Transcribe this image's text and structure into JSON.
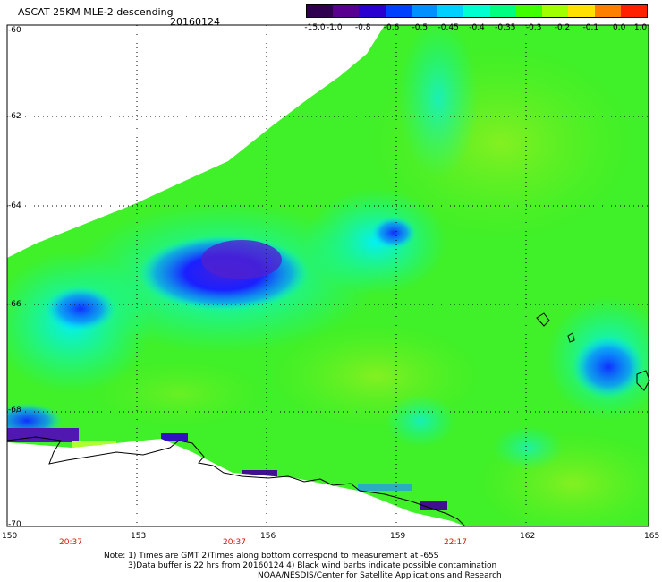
{
  "header": {
    "title": "ASCAT 25KM MLE-2 descending",
    "date": "20160124"
  },
  "colorbar": {
    "labels": [
      "-15.0",
      "-1.0",
      "-0.8",
      "-0.6",
      "-0.5",
      "-0.45",
      "-0.4",
      "-0.35",
      "-0.3",
      "-0.2",
      "-0.1",
      "0.0",
      "1.0"
    ],
    "colors": [
      "#300050",
      "#5a0090",
      "#2a00d0",
      "#0040ff",
      "#0090ff",
      "#00d0ff",
      "#00ffd0",
      "#00ff80",
      "#40ff00",
      "#a0ff00",
      "#ffe000",
      "#ff8000",
      "#ff2000"
    ]
  },
  "axes": {
    "lat_labels": [
      "-60",
      "-62",
      "-64",
      "-66",
      "-68",
      "-70"
    ],
    "lon_labels": [
      "150",
      "153",
      "156",
      "159",
      "162",
      "165"
    ]
  },
  "pass_times": [
    "20:37",
    "20:37",
    "22:17"
  ],
  "notes": {
    "line1": "Note: 1) Times are GMT 2)Times along bottom correspond to measurement at -65S",
    "line2": "3)Data buffer is 22 hrs from 20160124 4) Black wind barbs indicate possible contamination",
    "line3": "NOAA/NESDIS/Center for Satellite Applications and Research"
  }
}
